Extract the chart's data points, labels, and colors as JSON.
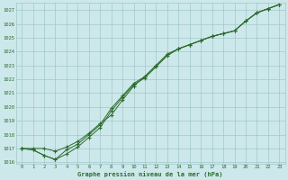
{
  "background_color": "#cde8ea",
  "grid_color": "#a0c8cb",
  "line_color": "#2d6b2d",
  "xlabel": "Graphe pression niveau de la mer (hPa)",
  "ylim": [
    1016,
    1027.5
  ],
  "xlim": [
    -0.5,
    23.5
  ],
  "yticks": [
    1016,
    1017,
    1018,
    1019,
    1020,
    1021,
    1022,
    1023,
    1024,
    1025,
    1026,
    1027
  ],
  "xticks": [
    0,
    1,
    2,
    3,
    4,
    5,
    6,
    7,
    8,
    9,
    10,
    11,
    12,
    13,
    14,
    15,
    16,
    17,
    18,
    19,
    20,
    21,
    22,
    23
  ],
  "line1": [
    1017.0,
    1017.0,
    1017.0,
    1016.8,
    1017.1,
    1017.5,
    1018.1,
    1018.8,
    1019.4,
    1020.5,
    1021.5,
    1022.2,
    1023.0,
    1023.8,
    1024.2,
    1024.5,
    1024.8,
    1025.1,
    1025.3,
    1025.5,
    1026.2,
    1026.8,
    1027.1,
    1027.4
  ],
  "line2": [
    1017.0,
    1016.9,
    1016.5,
    1016.2,
    1016.6,
    1017.1,
    1017.8,
    1018.5,
    1019.7,
    1020.7,
    1021.6,
    1022.1,
    1022.9,
    1023.7,
    1024.2,
    1024.5,
    1024.8,
    1025.1,
    1025.3,
    1025.5,
    1026.2,
    1026.8,
    1027.1,
    1027.4
  ],
  "line3": [
    1017.0,
    1016.9,
    1016.5,
    1016.2,
    1016.9,
    1017.3,
    1018.0,
    1018.7,
    1019.9,
    1020.8,
    1021.7,
    1022.2,
    1023.0,
    1023.8,
    1024.2,
    1024.5,
    1024.8,
    1025.1,
    1025.3,
    1025.5,
    1026.2,
    1026.8,
    1027.1,
    1027.4
  ]
}
